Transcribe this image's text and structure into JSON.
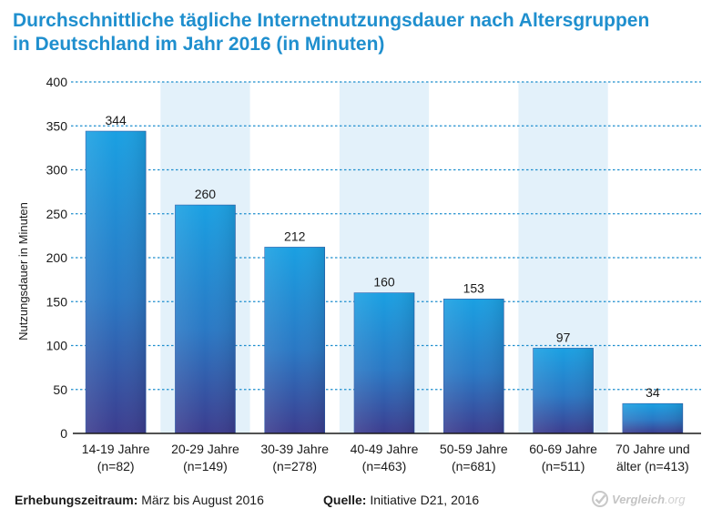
{
  "title_line1": "Durchschnittliche tägliche Internetnutzungsdauer nach Altersgruppen",
  "title_line2": "in Deutschland im Jahr 2016 (in Minuten)",
  "footer": {
    "period_label": "Erhebungszeitraum:",
    "period_value": "März bis August 2016",
    "source_label": "Quelle:",
    "source_value": "Initiative D21, 2016"
  },
  "brand": {
    "name": "Vergleich",
    "tld": ".org",
    "icon": "check-circle-icon"
  },
  "colors": {
    "title": "#1f8fce",
    "bar_top": "#1a9ee0",
    "bar_bottom": "#3b3f8f",
    "band": "#e3f1fa",
    "grid": "#1f8fce"
  },
  "chart_data": {
    "type": "bar",
    "title": "Durchschnittliche tägliche Internetnutzungsdauer nach Altersgruppen in Deutschland im Jahr 2016 (in Minuten)",
    "ylabel": "Nutzungsdauer in Minuten",
    "xlabel": "",
    "ylim": [
      0,
      400
    ],
    "yticks": [
      0,
      50,
      100,
      150,
      200,
      250,
      300,
      350,
      400
    ],
    "grid": true,
    "categories": [
      [
        "14-19 Jahre",
        "(n=82)"
      ],
      [
        "20-29 Jahre",
        "(n=149)"
      ],
      [
        "30-39 Jahre",
        "(n=278)"
      ],
      [
        "40-49 Jahre",
        "(n=463)"
      ],
      [
        "50-59 Jahre",
        "(n=681)"
      ],
      [
        "60-69 Jahre",
        "(n=511)"
      ],
      [
        "70 Jahre und",
        "älter (n=413)"
      ]
    ],
    "values": [
      344,
      260,
      212,
      160,
      153,
      97,
      34
    ],
    "value_labels": [
      "344",
      "260",
      "212",
      "160",
      "153",
      "97",
      "34"
    ]
  }
}
